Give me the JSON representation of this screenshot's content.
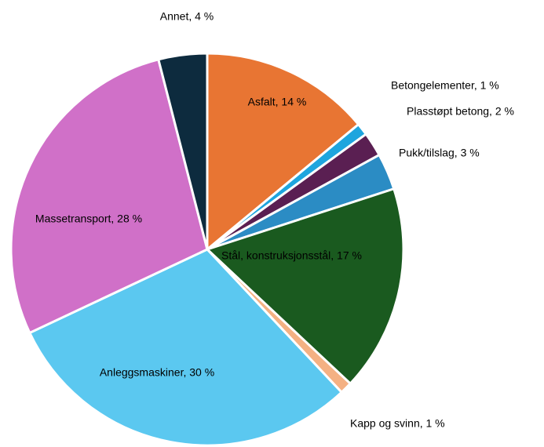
{
  "chart_data": {
    "type": "pie",
    "values": [
      14,
      1,
      2,
      3,
      17,
      1,
      30,
      28,
      4
    ],
    "value_labels": [
      "Asfalt, 14 %",
      "Betongelementer, 1 %",
      "Plasstøpt betong, 2 %",
      "Pukk/tilslag, 3 %",
      "Stål, konstruksjonsstål, 17 %",
      "Kapp og svinn, 1 %",
      "Anleggsmaskiner, 30 %",
      "Massetransport, 28 %",
      "Annet, 4 %"
    ],
    "colors": [
      "#e87533",
      "#1ea5de",
      "#5a1f52",
      "#2b8cc4",
      "#1a5a1f",
      "#f4b183",
      "#5bc8f0",
      "#d070c8",
      "#0d2b3e"
    ]
  }
}
